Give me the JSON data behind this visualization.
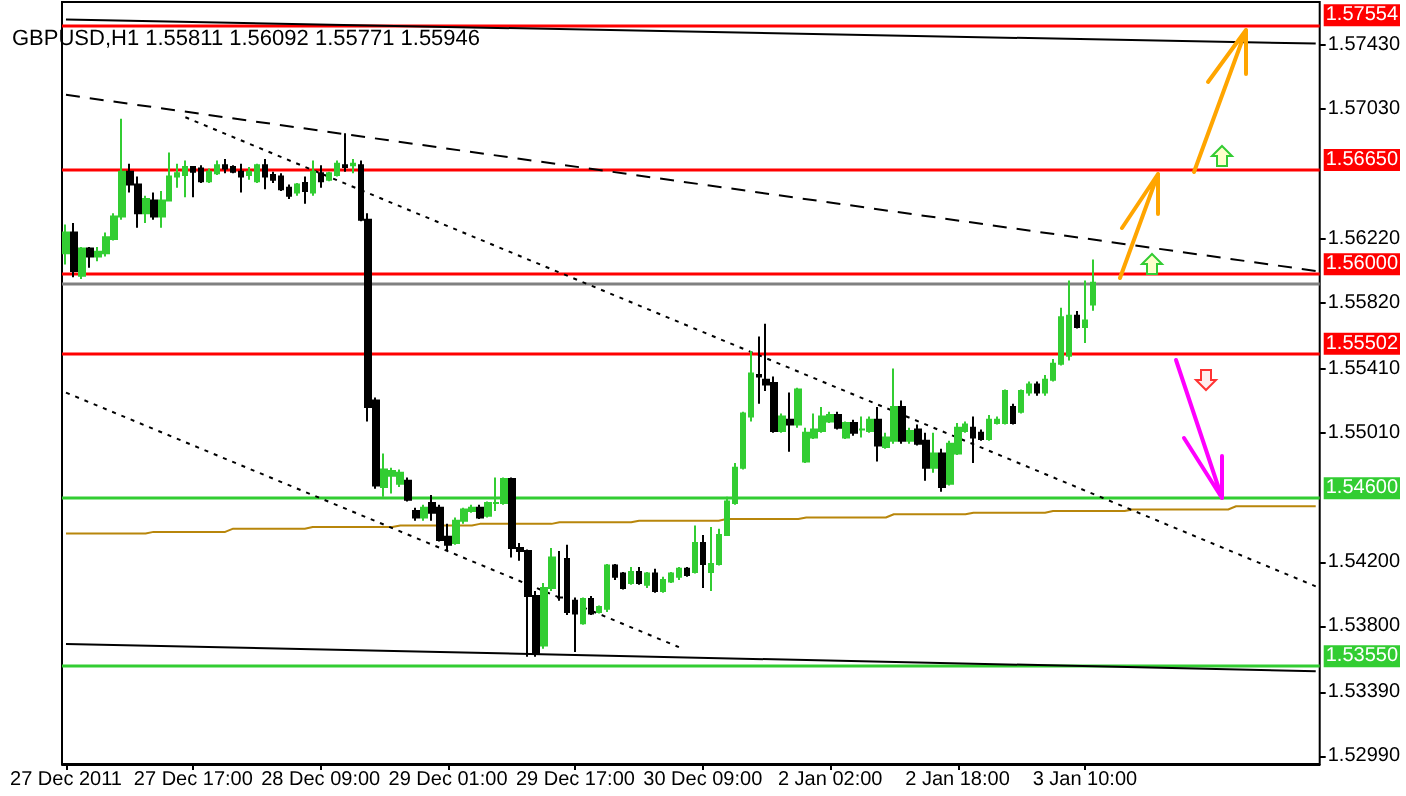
{
  "chart_data": {
    "type": "candlestick",
    "title": "GBPUSD,H1 1.55811 1.56092 1.55771 1.55946",
    "categories": [
      "27 Dec 2011",
      null,
      null,
      null,
      null,
      null,
      null,
      null,
      null,
      null,
      null,
      null,
      null,
      null,
      null,
      null,
      "27 Dec 17:00",
      null,
      null,
      null,
      null,
      null,
      null,
      null,
      null,
      null,
      null,
      null,
      null,
      null,
      null,
      null,
      "28 Dec 09:00",
      null,
      null,
      null,
      null,
      null,
      null,
      null,
      null,
      null,
      null,
      null,
      null,
      null,
      null,
      null,
      "29 Dec 01:00",
      null,
      null,
      null,
      null,
      null,
      null,
      null,
      null,
      null,
      null,
      null,
      null,
      null,
      null,
      null,
      "29 Dec 17:00",
      null,
      null,
      null,
      null,
      null,
      null,
      null,
      null,
      null,
      null,
      null,
      null,
      null,
      null,
      null,
      "30 Dec 09:00",
      null,
      null,
      null,
      null,
      null,
      null,
      null,
      null,
      null,
      null,
      null,
      null,
      null,
      null,
      null,
      "2 Jan 02:00",
      null,
      null,
      null,
      null,
      null,
      null,
      null,
      null,
      null,
      null,
      null,
      null,
      null,
      null,
      null,
      "2 Jan 18:00",
      null,
      null,
      null,
      null,
      null,
      null,
      null,
      null,
      null,
      null,
      null,
      null,
      null,
      null,
      null,
      "3 Jan 10:00",
      null,
      null,
      null,
      null,
      null,
      null,
      null,
      null,
      null,
      null,
      null,
      null,
      null,
      null,
      null,
      null,
      null,
      null,
      null,
      null,
      null,
      null,
      null,
      null,
      null,
      null,
      null,
      null,
      null
    ],
    "ohlc": [
      [
        1.5613,
        1.5631,
        1.5606,
        1.5626
      ],
      [
        1.5626,
        1.5632,
        1.5598,
        1.5602
      ],
      [
        1.5599,
        1.5617,
        1.5597,
        1.5616
      ],
      [
        1.5616,
        1.5617,
        1.5604,
        1.5611
      ],
      [
        1.5611,
        1.5617,
        1.5608,
        1.5614
      ],
      [
        1.5613,
        1.5626,
        1.5611,
        1.5623
      ],
      [
        1.5622,
        1.5638,
        1.5621,
        1.5636
      ],
      [
        1.5636,
        1.5697,
        1.5634,
        1.5664
      ],
      [
        1.5664,
        1.5669,
        1.5651,
        1.5656
      ],
      [
        1.5656,
        1.5661,
        1.5629,
        1.5638
      ],
      [
        1.5638,
        1.5649,
        1.5632,
        1.5647
      ],
      [
        1.5646,
        1.5651,
        1.5634,
        1.5636
      ],
      [
        1.5636,
        1.5652,
        1.5629,
        1.5646
      ],
      [
        1.5646,
        1.5676,
        1.5646,
        1.5661
      ],
      [
        1.5661,
        1.5669,
        1.5654,
        1.5663
      ],
      [
        1.5662,
        1.5671,
        1.5648,
        1.5667
      ],
      [
        1.5667,
        1.5667,
        1.5648,
        1.5664
      ],
      [
        1.5666,
        1.5668,
        1.5657,
        1.5658
      ],
      [
        1.5658,
        1.5666,
        1.5657,
        1.5664
      ],
      [
        1.5663,
        1.5671,
        1.5662,
        1.5668
      ],
      [
        1.5668,
        1.5672,
        1.5663,
        1.5666
      ],
      [
        1.5667,
        1.5668,
        1.5663,
        1.5664
      ],
      [
        1.5664,
        1.5669,
        1.5651,
        1.5661
      ],
      [
        1.5662,
        1.5667,
        1.5659,
        1.5664
      ],
      [
        1.5658,
        1.5669,
        1.5657,
        1.5668
      ],
      [
        1.5668,
        1.5672,
        1.5653,
        1.5661
      ],
      [
        1.5662,
        1.5664,
        1.5657,
        1.5659
      ],
      [
        1.5661,
        1.5663,
        1.5652,
        1.5653
      ],
      [
        1.5654,
        1.5656,
        1.5647,
        1.5649
      ],
      [
        1.5651,
        1.5657,
        1.5649,
        1.5656
      ],
      [
        1.5657,
        1.5661,
        1.5644,
        1.5652
      ],
      [
        1.5651,
        1.5671,
        1.5649,
        1.5664
      ],
      [
        1.5663,
        1.5668,
        1.5654,
        1.5658
      ],
      [
        1.5659,
        1.5664,
        1.5658,
        1.5663
      ],
      [
        1.5662,
        1.5671,
        1.5661,
        1.5669
      ],
      [
        1.5668,
        1.5688,
        1.5664,
        1.5667
      ],
      [
        1.5668,
        1.5672,
        1.5663,
        1.5669
      ],
      [
        1.5668,
        1.5671,
        1.5633,
        1.5634
      ],
      [
        1.5634,
        1.5638,
        1.5508,
        1.5517
      ],
      [
        1.5521,
        1.5523,
        1.5466,
        1.5468
      ],
      [
        1.5467,
        1.5488,
        1.5461,
        1.5478
      ],
      [
        1.5474,
        1.5479,
        1.5463,
        1.5477
      ],
      [
        1.5469,
        1.5478,
        1.5467,
        1.5476
      ],
      [
        1.5471,
        1.5473,
        1.5458,
        1.5459
      ],
      [
        1.5452,
        1.5454,
        1.5446,
        1.5448
      ],
      [
        1.5448,
        1.5456,
        1.5446,
        1.5454
      ],
      [
        1.5457,
        1.5462,
        1.5446,
        1.5451
      ],
      [
        1.5454,
        1.5456,
        1.5433,
        1.5434
      ],
      [
        1.5436,
        1.5444,
        1.5427,
        1.5431
      ],
      [
        1.5432,
        1.5448,
        1.5431,
        1.5446
      ],
      [
        1.5446,
        1.5454,
        1.5444,
        1.5453
      ],
      [
        1.5452,
        1.5456,
        1.5451,
        1.5454
      ],
      [
        1.5454,
        1.5456,
        1.5447,
        1.5448
      ],
      [
        1.5449,
        1.5458,
        1.5448,
        1.5457
      ],
      [
        1.5457,
        1.5473,
        1.5452,
        1.5457
      ],
      [
        1.5457,
        1.5473,
        1.5456,
        1.5472
      ],
      [
        1.5472,
        1.5473,
        1.5423,
        1.5429
      ],
      [
        1.5429,
        1.5432,
        1.5421,
        1.5427
      ],
      [
        1.5427,
        1.5428,
        1.5361,
        1.5399
      ],
      [
        1.5399,
        1.5402,
        1.5361,
        1.5363
      ],
      [
        1.5368,
        1.5407,
        1.5366,
        1.5404
      ],
      [
        1.5404,
        1.5429,
        1.5402,
        1.5423
      ],
      [
        1.5398,
        1.5427,
        1.5396,
        1.5398
      ],
      [
        1.5422,
        1.5431,
        1.5387,
        1.5389
      ],
      [
        1.5396,
        1.5398,
        1.5364,
        1.5388
      ],
      [
        1.5382,
        1.5398,
        1.5381,
        1.5397
      ],
      [
        1.5397,
        1.5399,
        1.5387,
        1.5388
      ],
      [
        1.5389,
        1.5393,
        1.5388,
        1.5392
      ],
      [
        1.5391,
        1.5419,
        1.5389,
        1.5418
      ],
      [
        1.5418,
        1.5419,
        1.5409,
        1.5411
      ],
      [
        1.5413,
        1.5414,
        1.5403,
        1.5404
      ],
      [
        1.5407,
        1.5417,
        1.5406,
        1.5414
      ],
      [
        1.5414,
        1.5417,
        1.5406,
        1.5407
      ],
      [
        1.5406,
        1.5414,
        1.5404,
        1.5413
      ],
      [
        1.5413,
        1.5416,
        1.5401,
        1.5402
      ],
      [
        1.5402,
        1.5411,
        1.5401,
        1.5409
      ],
      [
        1.5408,
        1.5414,
        1.5407,
        1.5413
      ],
      [
        1.5411,
        1.5417,
        1.5409,
        1.5416
      ],
      [
        1.5416,
        1.5417,
        1.5411,
        1.5412
      ],
      [
        1.5414,
        1.5443,
        1.5413,
        1.5432
      ],
      [
        1.5432,
        1.5437,
        1.5404,
        1.5419
      ],
      [
        1.5414,
        1.5442,
        1.5402,
        1.5419
      ],
      [
        1.5419,
        1.5441,
        1.5418,
        1.5437
      ],
      [
        1.5437,
        1.5461,
        1.5437,
        1.5458
      ],
      [
        1.5457,
        1.5482,
        1.5456,
        1.5479
      ],
      [
        1.5479,
        1.5514,
        1.5478,
        1.5513
      ],
      [
        1.5511,
        1.5552,
        1.5508,
        1.5538
      ],
      [
        1.5537,
        1.5561,
        1.5519,
        1.5536
      ],
      [
        1.5534,
        1.5569,
        1.5527,
        1.5531
      ],
      [
        1.5532,
        1.5536,
        1.5501,
        1.5502
      ],
      [
        1.5502,
        1.5513,
        1.5501,
        1.5511
      ],
      [
        1.5509,
        1.5526,
        1.5489,
        1.5506
      ],
      [
        1.5506,
        1.5529,
        1.5504,
        1.5528
      ],
      [
        1.5483,
        1.5504,
        1.5482,
        1.5501
      ],
      [
        1.5498,
        1.5513,
        1.5497,
        1.5503
      ],
      [
        1.5502,
        1.5517,
        1.5501,
        1.5511
      ],
      [
        1.5508,
        1.5514,
        1.5507,
        1.5512
      ],
      [
        1.5512,
        1.5514,
        1.5503,
        1.5504
      ],
      [
        1.5498,
        1.5508,
        1.5497,
        1.5507
      ],
      [
        1.5507,
        1.5509,
        1.5499,
        1.5501
      ],
      [
        1.5503,
        1.5511,
        1.5498,
        1.5503
      ],
      [
        1.5502,
        1.5511,
        1.5501,
        1.5509
      ],
      [
        1.5509,
        1.5517,
        1.5483,
        1.5493
      ],
      [
        1.5492,
        1.5501,
        1.5491,
        1.5498
      ],
      [
        1.5496,
        1.5541,
        1.5494,
        1.5517
      ],
      [
        1.5517,
        1.5521,
        1.5494,
        1.5496
      ],
      [
        1.5496,
        1.5504,
        1.5494,
        1.5502
      ],
      [
        1.5503,
        1.5506,
        1.5493,
        1.5494
      ],
      [
        1.5496,
        1.5501,
        1.5471,
        1.5479
      ],
      [
        1.5479,
        1.5501,
        1.5476,
        1.5488
      ],
      [
        1.5488,
        1.5491,
        1.5464,
        1.5467
      ],
      [
        1.5469,
        1.5496,
        1.5468,
        1.5494
      ],
      [
        1.5488,
        1.5507,
        1.5487,
        1.5504
      ],
      [
        1.5502,
        1.5508,
        1.5501,
        1.5506
      ],
      [
        1.5504,
        1.5511,
        1.5482,
        1.5498
      ],
      [
        1.5501,
        1.5503,
        1.5496,
        1.5497
      ],
      [
        1.5497,
        1.5512,
        1.5496,
        1.5509
      ],
      [
        1.5507,
        1.5511,
        1.5506,
        1.5509
      ],
      [
        1.5507,
        1.5528,
        1.5506,
        1.5527
      ],
      [
        1.5517,
        1.5519,
        1.5506,
        1.5507
      ],
      [
        1.5514,
        1.5528,
        1.5513,
        1.5527
      ],
      [
        1.5526,
        1.5533,
        1.5524,
        1.5531
      ],
      [
        1.5531,
        1.5533,
        1.5524,
        1.5526
      ],
      [
        1.5526,
        1.5537,
        1.5524,
        1.5534
      ],
      [
        1.5534,
        1.5547,
        1.5533,
        1.5544
      ],
      [
        1.5544,
        1.5579,
        1.5543,
        1.5573
      ],
      [
        1.5549,
        1.5596,
        1.5546,
        1.5574
      ],
      [
        1.5574,
        1.5577,
        1.5566,
        1.5567
      ],
      [
        1.5567,
        1.5596,
        1.5557,
        1.5571
      ],
      [
        1.55811,
        1.56092,
        1.55771,
        1.55946
      ],
      null,
      null,
      null,
      null,
      null,
      null,
      null,
      null,
      null,
      null,
      null,
      null,
      null,
      null,
      null,
      null,
      null,
      null,
      null,
      null,
      null,
      null,
      null,
      null,
      null,
      null,
      null,
      null
    ],
    "ylim": [
      1.5294,
      1.577
    ],
    "yticks": [
      {
        "value": 1.5299,
        "label": "1.52990"
      },
      {
        "value": 1.5339,
        "label": "1.53390"
      },
      {
        "value": 1.538,
        "label": "1.53800"
      },
      {
        "value": 1.542,
        "label": "1.54200"
      },
      {
        "value": 1.5501,
        "label": "1.55010"
      },
      {
        "value": 1.5541,
        "label": "1.55410"
      },
      {
        "value": 1.5582,
        "label": "1.55820"
      },
      {
        "value": 1.5622,
        "label": "1.56220"
      },
      {
        "value": 1.5703,
        "label": "1.57030"
      },
      {
        "value": 1.5743,
        "label": "1.57430"
      }
    ],
    "ref_lines": [
      {
        "axis": "y",
        "value": 1.57554,
        "label": "1.57554",
        "color": "#ff0000"
      },
      {
        "axis": "y",
        "value": 1.5665,
        "label": "1.56650",
        "color": "#ff0000"
      },
      {
        "axis": "y",
        "value": 1.56,
        "label": "1.56000",
        "color": "#ff0000"
      },
      {
        "axis": "y",
        "value": 1.55502,
        "label": "1.55502",
        "color": "#ff0000"
      },
      {
        "axis": "y",
        "value": 1.546,
        "label": "1.54600",
        "color": "#32cd32"
      },
      {
        "axis": "y",
        "value": 1.5355,
        "label": "1.53550",
        "color": "#32cd32"
      },
      {
        "axis": "y",
        "value": 1.55946,
        "label": null,
        "color": "#808080"
      }
    ],
    "series": [
      {
        "type": "line",
        "color": "#b8860b",
        "line_style": "solid",
        "values": [
          1.5438,
          1.5438,
          1.5438,
          1.5438,
          1.5438,
          1.5438,
          1.5438,
          1.5438,
          1.5438,
          1.5438,
          1.5438,
          1.5439,
          1.5439,
          1.5439,
          1.5439,
          1.5439,
          1.5439,
          1.5439,
          1.5439,
          1.5439,
          1.5439,
          1.5441,
          1.5441,
          1.5441,
          1.5441,
          1.5441,
          1.5441,
          1.5441,
          1.5441,
          1.5441,
          1.5441,
          1.5442,
          1.5442,
          1.5442,
          1.5442,
          1.5442,
          1.5442,
          1.5442,
          1.5442,
          1.5442,
          1.5442,
          1.5442,
          1.5443,
          1.5443,
          1.5443,
          1.5443,
          1.5443,
          1.5443,
          1.5443,
          1.5443,
          1.5443,
          1.5443,
          1.5444,
          1.5444,
          1.5444,
          1.5444,
          1.5444,
          1.5444,
          1.5444,
          1.5444,
          1.5444,
          1.5444,
          1.5445,
          1.5445,
          1.5445,
          1.5445,
          1.5445,
          1.5445,
          1.5445,
          1.5445,
          1.5445,
          1.5445,
          1.5446,
          1.5446,
          1.5446,
          1.5446,
          1.5446,
          1.5446,
          1.5446,
          1.5446,
          1.5446,
          1.5446,
          1.5446,
          1.5447,
          1.5447,
          1.5447,
          1.5447,
          1.5447,
          1.5447,
          1.5447,
          1.5447,
          1.5447,
          1.5447,
          1.5448,
          1.5448,
          1.5448,
          1.5448,
          1.5448,
          1.5448,
          1.5448,
          1.5448,
          1.5448,
          1.5448,
          1.5448,
          1.545,
          1.545,
          1.545,
          1.545,
          1.545,
          1.545,
          1.545,
          1.545,
          1.545,
          1.545,
          1.5451,
          1.5451,
          1.5451,
          1.5451,
          1.5451,
          1.5451,
          1.5451,
          1.5451,
          1.5451,
          1.5451,
          1.5452,
          1.5452,
          1.5452,
          1.5452,
          1.5452,
          1.5452,
          1.5452,
          1.5452,
          1.5452,
          1.5452,
          1.5453,
          1.5453,
          1.5453,
          1.5453,
          1.5453,
          1.5453,
          1.5453,
          1.5453,
          1.5453,
          1.5453,
          1.5453,
          1.5453,
          1.5453,
          1.5455,
          1.5455,
          1.5455,
          1.5455,
          1.5455,
          1.5455,
          1.5455,
          1.5455,
          1.5455,
          1.5455,
          1.5455
        ]
      },
      {
        "type": "line",
        "color": "#000000",
        "line_style": "solid",
        "values": [
          1.5759,
          null,
          null,
          null,
          null,
          null,
          null,
          null,
          null,
          null,
          null,
          null,
          null,
          null,
          null,
          null,
          null,
          null,
          null,
          null,
          null,
          null,
          null,
          null,
          null,
          null,
          null,
          null,
          null,
          null,
          null,
          null,
          null,
          null,
          null,
          null,
          null,
          null,
          null,
          null,
          null,
          null,
          null,
          null,
          null,
          null,
          null,
          null,
          null,
          null,
          null,
          null,
          null,
          null,
          null,
          null,
          null,
          null,
          null,
          null,
          null,
          null,
          null,
          null,
          null,
          null,
          null,
          null,
          null,
          null,
          null,
          null,
          null,
          null,
          null,
          null,
          null,
          null,
          null,
          null,
          null,
          null,
          null,
          null,
          null,
          null,
          null,
          null,
          null,
          null,
          null,
          null,
          null,
          null,
          null,
          null,
          null,
          null,
          null,
          null,
          null,
          null,
          null,
          null,
          null,
          null,
          null,
          null,
          null,
          null,
          null,
          null,
          null,
          null,
          null,
          null,
          null,
          null,
          null,
          null,
          null,
          null,
          null,
          null,
          null,
          null,
          null,
          null,
          null,
          null,
          null,
          null,
          null,
          null,
          null,
          null,
          null,
          null,
          null,
          null,
          null,
          null,
          null,
          null,
          null,
          null,
          null,
          null,
          null,
          null,
          null,
          null,
          null,
          null,
          null,
          null,
          null,
          1.5744
        ]
      },
      {
        "type": "line",
        "color": "#000000",
        "line_style": "solid",
        "values": [
          1.5369,
          null,
          null,
          null,
          null,
          null,
          null,
          null,
          null,
          null,
          null,
          null,
          null,
          null,
          null,
          null,
          null,
          null,
          null,
          null,
          null,
          null,
          null,
          null,
          null,
          null,
          null,
          null,
          null,
          null,
          null,
          null,
          null,
          null,
          null,
          null,
          null,
          null,
          null,
          null,
          null,
          null,
          null,
          null,
          null,
          null,
          null,
          null,
          null,
          null,
          null,
          null,
          null,
          null,
          null,
          null,
          null,
          null,
          null,
          null,
          null,
          null,
          null,
          null,
          null,
          null,
          null,
          null,
          null,
          null,
          null,
          null,
          null,
          null,
          null,
          null,
          null,
          null,
          null,
          null,
          null,
          null,
          null,
          null,
          null,
          null,
          null,
          null,
          null,
          null,
          null,
          null,
          null,
          null,
          null,
          null,
          null,
          null,
          null,
          null,
          null,
          null,
          null,
          null,
          null,
          null,
          null,
          null,
          null,
          null,
          null,
          null,
          null,
          null,
          null,
          null,
          null,
          null,
          null,
          null,
          null,
          null,
          null,
          null,
          null,
          null,
          null,
          null,
          null,
          null,
          null,
          null,
          null,
          null,
          null,
          null,
          null,
          null,
          null,
          null,
          null,
          null,
          null,
          null,
          null,
          null,
          null,
          null,
          null,
          null,
          null,
          null,
          null,
          null,
          null,
          null,
          null,
          1.5352
        ]
      },
      {
        "type": "line",
        "color": "#000000",
        "line_style": "dashed",
        "values": [
          1.5712,
          null,
          null,
          null,
          null,
          null,
          null,
          null,
          null,
          null,
          null,
          null,
          null,
          null,
          null,
          null,
          null,
          null,
          null,
          null,
          null,
          null,
          null,
          null,
          null,
          null,
          null,
          null,
          null,
          null,
          null,
          null,
          null,
          null,
          null,
          null,
          null,
          null,
          null,
          null,
          null,
          null,
          null,
          null,
          null,
          null,
          null,
          null,
          null,
          null,
          null,
          null,
          null,
          null,
          null,
          null,
          null,
          null,
          null,
          null,
          null,
          null,
          null,
          null,
          null,
          null,
          null,
          null,
          null,
          null,
          null,
          null,
          null,
          null,
          null,
          null,
          null,
          null,
          null,
          null,
          null,
          null,
          null,
          null,
          null,
          null,
          null,
          null,
          null,
          null,
          null,
          null,
          null,
          null,
          null,
          null,
          null,
          null,
          null,
          null,
          null,
          null,
          null,
          null,
          null,
          null,
          null,
          null,
          null,
          null,
          null,
          null,
          null,
          null,
          null,
          null,
          null,
          null,
          null,
          null,
          null,
          null,
          null,
          null,
          null,
          null,
          null,
          null,
          null,
          null,
          null,
          null,
          null,
          null,
          null,
          null,
          null,
          null,
          null,
          null,
          null,
          null,
          null,
          null,
          null,
          null,
          null,
          null,
          null,
          null,
          null,
          null,
          null,
          null,
          null,
          null,
          null,
          1.5602
        ]
      },
      {
        "type": "line",
        "color": "#000000",
        "line_style": "dotted",
        "values": [
          null,
          null,
          null,
          null,
          null,
          null,
          null,
          null,
          null,
          null,
          null,
          null,
          null,
          null,
          null,
          1.5698,
          null,
          null,
          null,
          null,
          null,
          null,
          null,
          null,
          null,
          null,
          null,
          null,
          null,
          null,
          null,
          null,
          null,
          null,
          null,
          null,
          null,
          null,
          null,
          null,
          null,
          null,
          null,
          null,
          null,
          null,
          null,
          null,
          null,
          null,
          null,
          null,
          null,
          null,
          null,
          null,
          null,
          null,
          null,
          null,
          null,
          null,
          null,
          null,
          null,
          null,
          null,
          null,
          null,
          null,
          null,
          null,
          null,
          null,
          null,
          null,
          null,
          null,
          null,
          null,
          null,
          null,
          null,
          null,
          null,
          null,
          null,
          null,
          null,
          null,
          null,
          null,
          null,
          null,
          null,
          null,
          null,
          null,
          null,
          null,
          null,
          null,
          null,
          null,
          null,
          null,
          null,
          null,
          null,
          null,
          null,
          null,
          null,
          null,
          null,
          null,
          null,
          null,
          null,
          null,
          null,
          null,
          null,
          null,
          null,
          null,
          null,
          null,
          null,
          null,
          null,
          null,
          null,
          null,
          null,
          null,
          null,
          null,
          null,
          null,
          null,
          null,
          null,
          null,
          null,
          null,
          null,
          null,
          null,
          null,
          null,
          null,
          null,
          null,
          null,
          null,
          null,
          1.5405
        ]
      },
      {
        "type": "line",
        "color": "#000000",
        "line_style": "dotted",
        "values": [
          1.5526,
          null,
          null,
          null,
          null,
          null,
          null,
          null,
          null,
          null,
          null,
          null,
          null,
          null,
          null,
          null,
          null,
          null,
          null,
          null,
          null,
          null,
          null,
          null,
          null,
          null,
          null,
          null,
          null,
          null,
          null,
          null,
          null,
          null,
          null,
          null,
          null,
          null,
          null,
          null,
          null,
          null,
          null,
          null,
          null,
          null,
          null,
          null,
          null,
          null,
          null,
          null,
          null,
          null,
          null,
          null,
          null,
          null,
          null,
          null,
          null,
          null,
          null,
          null,
          null,
          null,
          null,
          null,
          null,
          null,
          null,
          null,
          null,
          null,
          null,
          null,
          null,
          1.5367,
          null,
          null,
          null,
          null,
          null,
          null,
          null,
          null,
          null,
          null,
          null,
          null,
          null,
          null,
          null,
          null,
          null,
          null,
          null,
          null,
          null,
          null,
          null,
          null,
          null,
          null,
          null,
          null,
          null,
          null,
          null,
          null,
          null,
          null,
          null,
          null,
          null,
          null,
          null,
          null,
          null,
          null,
          null,
          null,
          null,
          null,
          null,
          null,
          null,
          null,
          null,
          null,
          null,
          null,
          null,
          null,
          null,
          null,
          null,
          null,
          null,
          null,
          null,
          null,
          null,
          null,
          null,
          null,
          null,
          null,
          null,
          null,
          null,
          null,
          null,
          null,
          null,
          null,
          null,
          null
        ]
      }
    ]
  }
}
